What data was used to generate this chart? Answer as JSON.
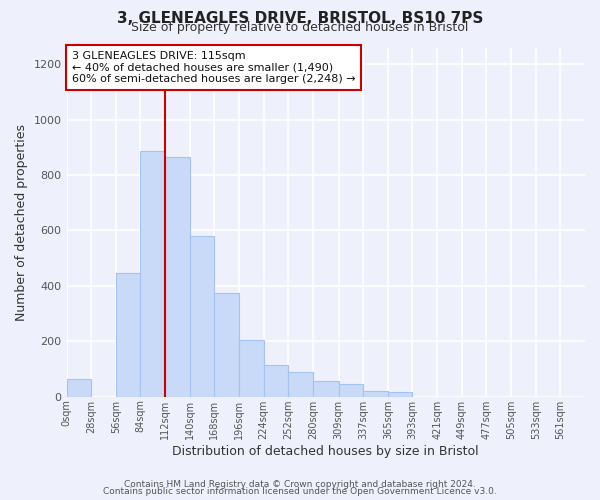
{
  "title1": "3, GLENEAGLES DRIVE, BRISTOL, BS10 7PS",
  "title2": "Size of property relative to detached houses in Bristol",
  "xlabel": "Distribution of detached houses by size in Bristol",
  "ylabel": "Number of detached properties",
  "bin_labels": [
    "0sqm",
    "28sqm",
    "56sqm",
    "84sqm",
    "112sqm",
    "140sqm",
    "168sqm",
    "196sqm",
    "224sqm",
    "252sqm",
    "280sqm",
    "309sqm",
    "337sqm",
    "365sqm",
    "393sqm",
    "421sqm",
    "449sqm",
    "477sqm",
    "505sqm",
    "533sqm",
    "561sqm"
  ],
  "bin_edges": [
    0,
    28,
    56,
    84,
    112,
    140,
    168,
    196,
    224,
    252,
    280,
    309,
    337,
    365,
    393,
    421,
    449,
    477,
    505,
    533,
    561,
    589
  ],
  "bar_heights": [
    65,
    0,
    445,
    885,
    865,
    580,
    375,
    205,
    115,
    90,
    57,
    45,
    20,
    18,
    0,
    0,
    0,
    0,
    0,
    0,
    0
  ],
  "bar_color": "#c9daf8",
  "bar_edge_color": "#a4c2f4",
  "bg_color": "#eef1fb",
  "grid_color": "#ffffff",
  "vline_x": 112,
  "vline_color": "#cc0000",
  "annotation_line1": "3 GLENEAGLES DRIVE: 115sqm",
  "annotation_line2": "← 40% of detached houses are smaller (1,490)",
  "annotation_line3": "60% of semi-detached houses are larger (2,248) →",
  "annotation_box_color": "#ffffff",
  "annotation_box_edge_color": "#cc0000",
  "ylim": [
    0,
    1260
  ],
  "yticks": [
    0,
    200,
    400,
    600,
    800,
    1000,
    1200
  ],
  "footer1": "Contains HM Land Registry data © Crown copyright and database right 2024.",
  "footer2": "Contains public sector information licensed under the Open Government Licence v3.0."
}
